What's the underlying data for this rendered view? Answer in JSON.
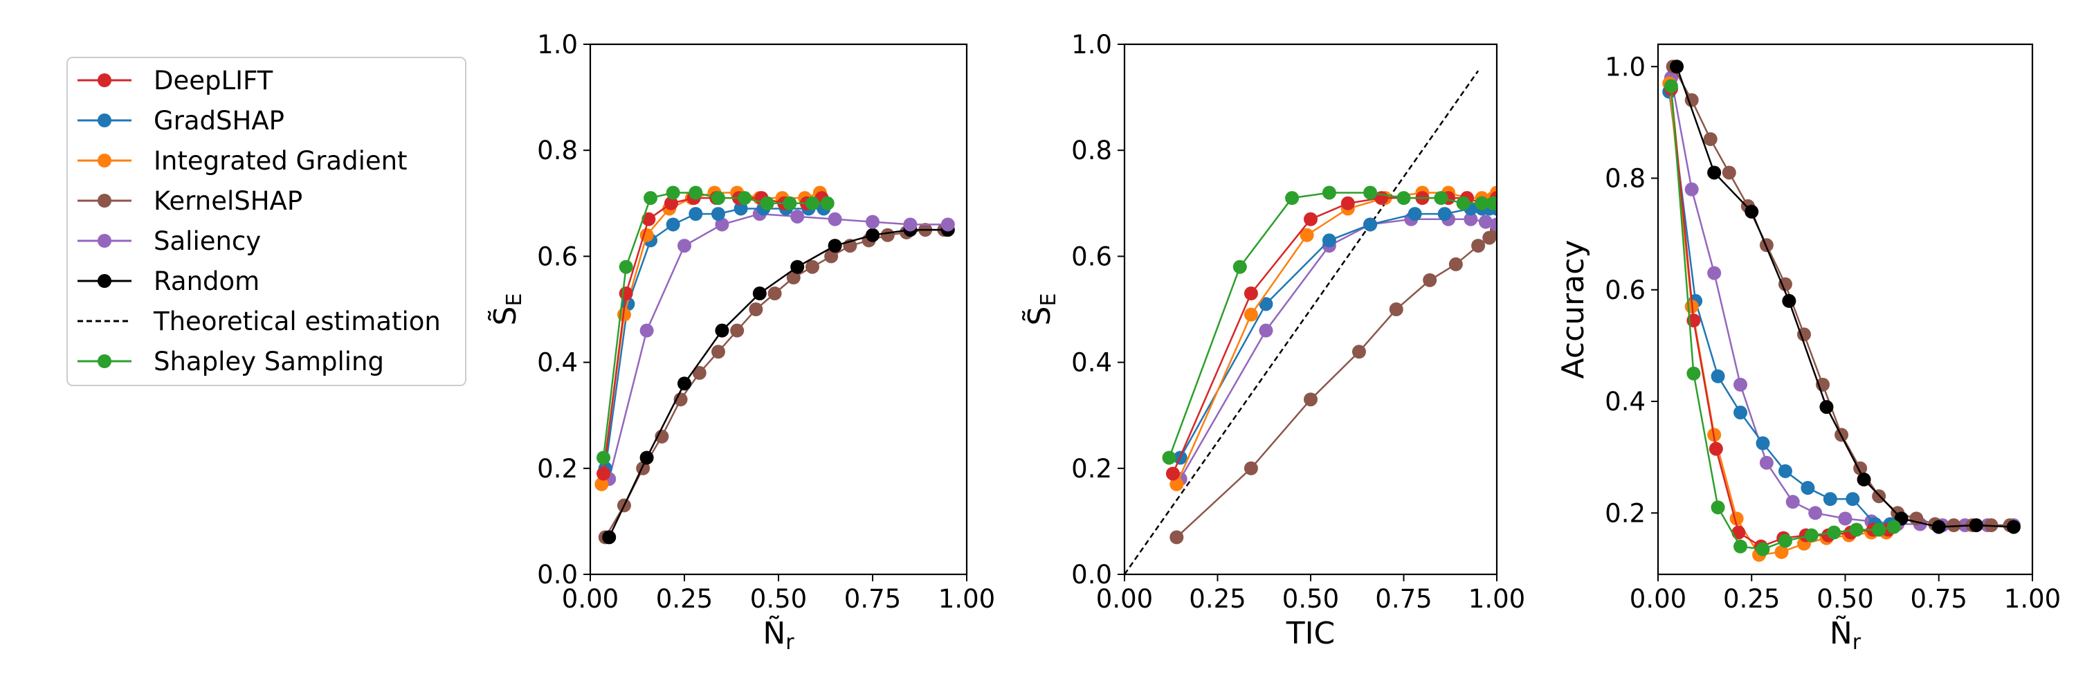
{
  "legend": {
    "items": [
      {
        "key": "deeplift",
        "label": "DeepLIFT",
        "color": "#d62728",
        "style": "line-marker"
      },
      {
        "key": "gradshap",
        "label": "GradSHAP",
        "color": "#1f77b4",
        "style": "line-marker"
      },
      {
        "key": "ig",
        "label": "Integrated Gradient",
        "color": "#ff7f0e",
        "style": "line-marker"
      },
      {
        "key": "kernelshap",
        "label": "KernelSHAP",
        "color": "#8c564b",
        "style": "line-marker"
      },
      {
        "key": "saliency",
        "label": "Saliency",
        "color": "#9467bd",
        "style": "line-marker"
      },
      {
        "key": "random",
        "label": "Random",
        "color": "#000000",
        "style": "line-marker"
      },
      {
        "key": "theory",
        "label": "Theoretical estimation",
        "color": "#000000",
        "style": "dashed"
      },
      {
        "key": "shapley",
        "label": "Shapley Sampling",
        "color": "#2ca02c",
        "style": "line-marker"
      }
    ]
  },
  "chart_data": [
    {
      "type": "line",
      "id": "left",
      "xlabel": {
        "base": "Ñ",
        "sub": "r"
      },
      "ylabel": {
        "base": "S̃",
        "sub": "E"
      },
      "xlim": [
        0,
        1
      ],
      "ylim": [
        0,
        1
      ],
      "xticks": [
        "0.00",
        "0.25",
        "0.50",
        "0.75",
        "1.00"
      ],
      "yticks": [
        "0.0",
        "0.2",
        "0.4",
        "0.6",
        "0.8",
        "1.0"
      ],
      "series": [
        {
          "key": "kernelshap",
          "x": [
            0.04,
            0.09,
            0.14,
            0.19,
            0.24,
            0.29,
            0.34,
            0.39,
            0.44,
            0.49,
            0.54,
            0.59,
            0.64,
            0.69,
            0.74,
            0.79,
            0.84,
            0.89,
            0.94
          ],
          "y": [
            0.07,
            0.13,
            0.2,
            0.26,
            0.33,
            0.38,
            0.42,
            0.46,
            0.5,
            0.53,
            0.56,
            0.58,
            0.6,
            0.62,
            0.63,
            0.64,
            0.645,
            0.65,
            0.65
          ]
        },
        {
          "key": "random",
          "x": [
            0.05,
            0.15,
            0.25,
            0.35,
            0.45,
            0.55,
            0.65,
            0.75,
            0.85,
            0.95
          ],
          "y": [
            0.07,
            0.22,
            0.36,
            0.46,
            0.53,
            0.58,
            0.62,
            0.64,
            0.65,
            0.65
          ]
        },
        {
          "key": "saliency",
          "x": [
            0.05,
            0.15,
            0.25,
            0.35,
            0.45,
            0.55,
            0.65,
            0.75,
            0.85,
            0.95
          ],
          "y": [
            0.18,
            0.46,
            0.62,
            0.66,
            0.68,
            0.675,
            0.67,
            0.665,
            0.66,
            0.66
          ]
        },
        {
          "key": "gradshap",
          "x": [
            0.04,
            0.1,
            0.16,
            0.22,
            0.28,
            0.34,
            0.4,
            0.46,
            0.52,
            0.58,
            0.62
          ],
          "y": [
            0.2,
            0.51,
            0.63,
            0.66,
            0.68,
            0.68,
            0.69,
            0.69,
            0.69,
            0.69,
            0.69
          ]
        },
        {
          "key": "ig",
          "x": [
            0.03,
            0.09,
            0.15,
            0.21,
            0.27,
            0.33,
            0.39,
            0.45,
            0.51,
            0.57,
            0.61
          ],
          "y": [
            0.17,
            0.49,
            0.64,
            0.69,
            0.71,
            0.72,
            0.72,
            0.71,
            0.71,
            0.71,
            0.72
          ]
        },
        {
          "key": "deeplift",
          "x": [
            0.035,
            0.095,
            0.155,
            0.215,
            0.275,
            0.335,
            0.395,
            0.455,
            0.515,
            0.575,
            0.615
          ],
          "y": [
            0.19,
            0.53,
            0.67,
            0.7,
            0.71,
            0.71,
            0.71,
            0.71,
            0.7,
            0.7,
            0.71
          ]
        },
        {
          "key": "shapley",
          "x": [
            0.035,
            0.095,
            0.16,
            0.22,
            0.28,
            0.34,
            0.41,
            0.47,
            0.53,
            0.59,
            0.63
          ],
          "y": [
            0.22,
            0.58,
            0.71,
            0.72,
            0.72,
            0.71,
            0.71,
            0.7,
            0.7,
            0.7,
            0.7
          ]
        }
      ]
    },
    {
      "type": "line",
      "id": "middle",
      "xlabel": {
        "base": "TIC",
        "sub": ""
      },
      "ylabel": {
        "base": "S̃",
        "sub": "E"
      },
      "xlim": [
        0,
        1
      ],
      "ylim": [
        0,
        1
      ],
      "xticks": [
        "0.00",
        "0.25",
        "0.50",
        "0.75",
        "1.00"
      ],
      "yticks": [
        "0.0",
        "0.2",
        "0.4",
        "0.6",
        "0.8",
        "1.0"
      ],
      "series": [
        {
          "key": "theory",
          "x": [
            0,
            0.95
          ],
          "y": [
            0,
            0.95
          ]
        },
        {
          "key": "kernelshap",
          "x": [
            0.14,
            0.34,
            0.5,
            0.63,
            0.73,
            0.82,
            0.89,
            0.95,
            0.98,
            1.0
          ],
          "y": [
            0.07,
            0.2,
            0.33,
            0.42,
            0.5,
            0.555,
            0.585,
            0.62,
            0.635,
            0.65
          ]
        },
        {
          "key": "saliency",
          "x": [
            0.15,
            0.38,
            0.55,
            0.66,
            0.77,
            0.87,
            0.93,
            0.97,
            1.0
          ],
          "y": [
            0.18,
            0.46,
            0.62,
            0.66,
            0.67,
            0.67,
            0.67,
            0.665,
            0.66
          ]
        },
        {
          "key": "gradshap",
          "x": [
            0.15,
            0.38,
            0.55,
            0.66,
            0.78,
            0.86,
            0.93,
            0.96,
            0.98,
            1.0
          ],
          "y": [
            0.22,
            0.51,
            0.63,
            0.66,
            0.68,
            0.68,
            0.69,
            0.69,
            0.69,
            0.69
          ]
        },
        {
          "key": "ig",
          "x": [
            0.14,
            0.34,
            0.49,
            0.6,
            0.7,
            0.8,
            0.87,
            0.92,
            0.96,
            0.99,
            1.0
          ],
          "y": [
            0.17,
            0.49,
            0.64,
            0.69,
            0.71,
            0.72,
            0.72,
            0.71,
            0.71,
            0.71,
            0.72
          ]
        },
        {
          "key": "deeplift",
          "x": [
            0.13,
            0.34,
            0.5,
            0.6,
            0.69,
            0.8,
            0.87,
            0.92,
            0.96,
            0.99,
            1.0
          ],
          "y": [
            0.19,
            0.53,
            0.67,
            0.7,
            0.71,
            0.71,
            0.71,
            0.71,
            0.7,
            0.7,
            0.71
          ]
        },
        {
          "key": "shapley",
          "x": [
            0.12,
            0.31,
            0.45,
            0.55,
            0.66,
            0.75,
            0.85,
            0.91,
            0.96,
            0.99,
            1.0
          ],
          "y": [
            0.22,
            0.58,
            0.71,
            0.72,
            0.72,
            0.71,
            0.71,
            0.7,
            0.7,
            0.7,
            0.7
          ]
        }
      ]
    },
    {
      "type": "line",
      "id": "right",
      "xlabel": {
        "base": "Ñ",
        "sub": "r"
      },
      "ylabel": {
        "base": "Accuracy",
        "sub": ""
      },
      "xlim": [
        0,
        1
      ],
      "ylim": [
        0.09,
        1.04
      ],
      "xticks": [
        "0.00",
        "0.25",
        "0.50",
        "0.75",
        "1.00"
      ],
      "yticks": [
        "0.2",
        "0.4",
        "0.6",
        "0.8",
        "1.0"
      ],
      "series": [
        {
          "key": "saliency",
          "x": [
            0.035,
            0.09,
            0.15,
            0.22,
            0.29,
            0.36,
            0.42,
            0.5,
            0.57,
            0.64,
            0.7,
            0.76,
            0.82,
            0.88,
            0.95
          ],
          "y": [
            0.98,
            0.78,
            0.63,
            0.43,
            0.29,
            0.22,
            0.2,
            0.19,
            0.185,
            0.18,
            0.18,
            0.178,
            0.178,
            0.178,
            0.178
          ]
        },
        {
          "key": "kernelshap",
          "x": [
            0.04,
            0.09,
            0.14,
            0.19,
            0.24,
            0.29,
            0.34,
            0.39,
            0.44,
            0.49,
            0.54,
            0.59,
            0.64,
            0.69,
            0.74,
            0.79,
            0.84,
            0.89,
            0.94
          ],
          "y": [
            1.0,
            0.94,
            0.87,
            0.81,
            0.75,
            0.68,
            0.61,
            0.52,
            0.43,
            0.34,
            0.28,
            0.23,
            0.2,
            0.19,
            0.18,
            0.178,
            0.178,
            0.178,
            0.178
          ]
        },
        {
          "key": "random",
          "x": [
            0.05,
            0.15,
            0.25,
            0.35,
            0.45,
            0.55,
            0.65,
            0.75,
            0.85,
            0.95
          ],
          "y": [
            1.0,
            0.81,
            0.74,
            0.58,
            0.39,
            0.26,
            0.19,
            0.175,
            0.178,
            0.175
          ]
        },
        {
          "key": "gradshap",
          "x": [
            0.03,
            0.1,
            0.16,
            0.22,
            0.28,
            0.34,
            0.4,
            0.46,
            0.52,
            0.58,
            0.62
          ],
          "y": [
            0.955,
            0.58,
            0.445,
            0.38,
            0.325,
            0.275,
            0.245,
            0.225,
            0.225,
            0.18,
            0.18
          ]
        },
        {
          "key": "ig",
          "x": [
            0.03,
            0.09,
            0.15,
            0.21,
            0.27,
            0.33,
            0.39,
            0.45,
            0.51,
            0.57,
            0.61
          ],
          "y": [
            0.97,
            0.57,
            0.34,
            0.19,
            0.125,
            0.13,
            0.145,
            0.155,
            0.16,
            0.165,
            0.165
          ]
        },
        {
          "key": "deeplift",
          "x": [
            0.035,
            0.095,
            0.155,
            0.215,
            0.275,
            0.335,
            0.395,
            0.455,
            0.515,
            0.575,
            0.615
          ],
          "y": [
            0.96,
            0.545,
            0.315,
            0.165,
            0.14,
            0.155,
            0.16,
            0.16,
            0.165,
            0.17,
            0.17
          ]
        },
        {
          "key": "shapley",
          "x": [
            0.035,
            0.095,
            0.16,
            0.22,
            0.28,
            0.34,
            0.41,
            0.47,
            0.53,
            0.59,
            0.63
          ],
          "y": [
            0.965,
            0.45,
            0.21,
            0.14,
            0.135,
            0.15,
            0.16,
            0.165,
            0.17,
            0.17,
            0.175
          ]
        }
      ]
    }
  ]
}
